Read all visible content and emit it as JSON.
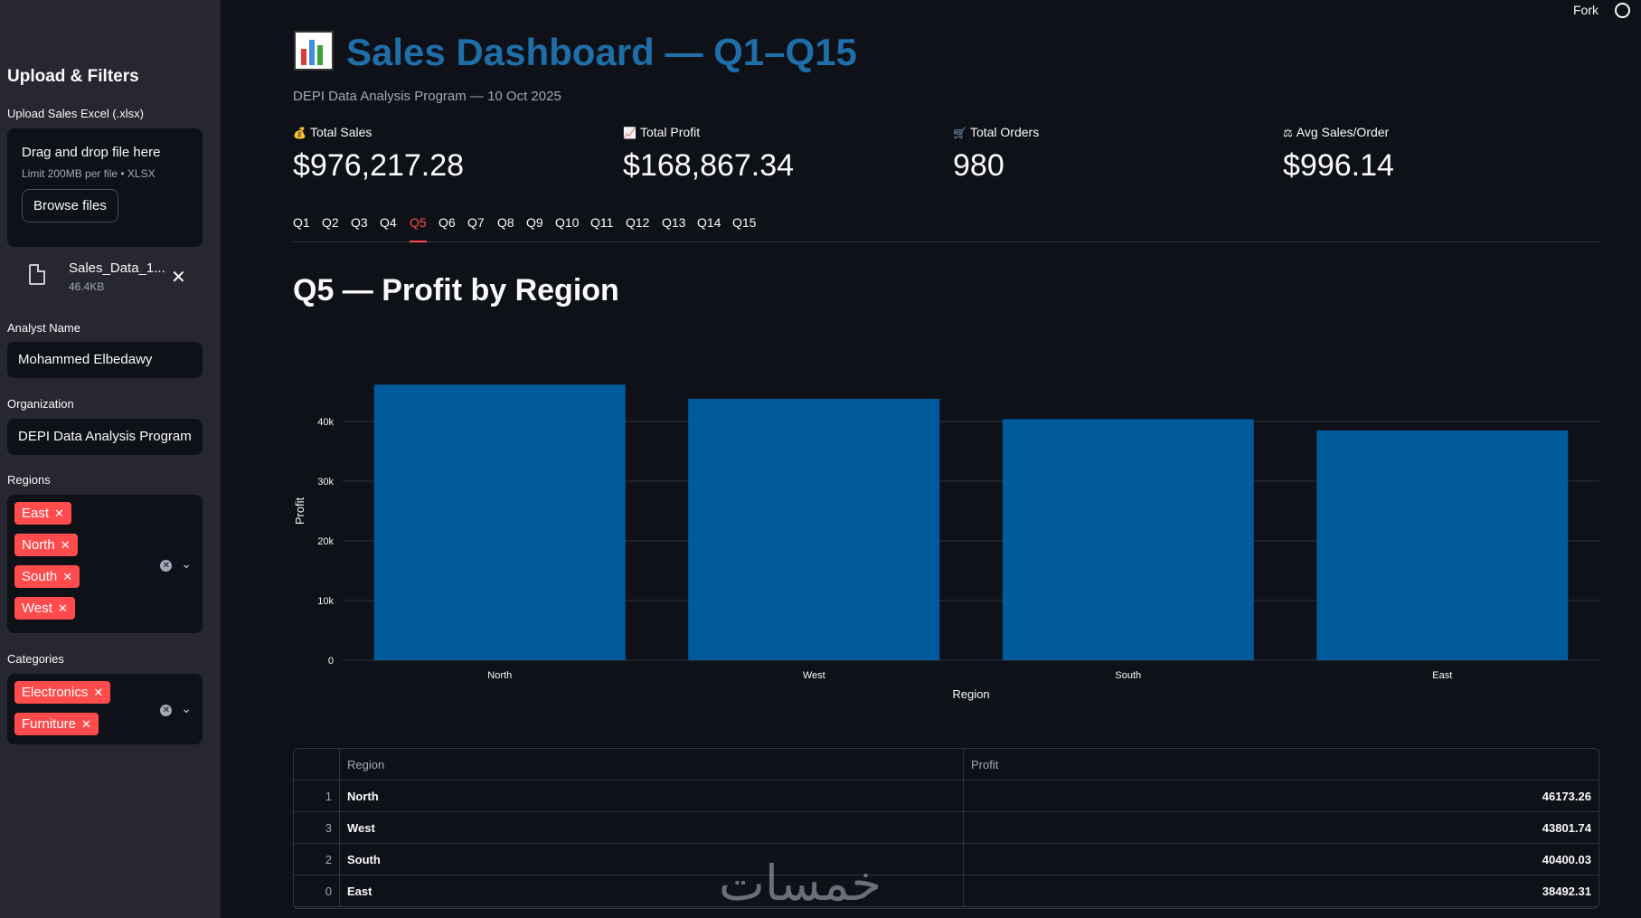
{
  "header": {
    "fork_label": "Fork",
    "github_icon": "github-icon"
  },
  "sidebar": {
    "title": "Upload & Filters",
    "upload_label": "Upload Sales Excel (.xlsx)",
    "dropzone_text": "Drag and drop file here",
    "dropzone_limit": "Limit 200MB per file • XLSX",
    "browse_button": "Browse files",
    "file": {
      "name": "Sales_Data_1...",
      "size": "46.4KB"
    },
    "analyst_label": "Analyst Name",
    "analyst_value": "Mohammed Elbedawy",
    "org_label": "Organization",
    "org_value": "DEPI Data Analysis Program",
    "regions_label": "Regions",
    "regions": [
      "East",
      "North",
      "South",
      "West"
    ],
    "categories_label": "Categories",
    "categories": [
      "Electronics",
      "Furniture"
    ]
  },
  "main": {
    "title": "Sales Dashboard — Q1–Q15",
    "subtitle": "DEPI Data Analysis Program — 10 Oct 2025",
    "metrics": [
      {
        "icon": "money-bag-icon",
        "label": "Total Sales",
        "value": "$976,217.28"
      },
      {
        "icon": "chart-increasing-icon",
        "label": "Total Profit",
        "value": "$168,867.34"
      },
      {
        "icon": "shopping-cart-icon",
        "label": "Total Orders",
        "value": "980"
      },
      {
        "icon": "balance-scale-icon",
        "label": "Avg Sales/Order",
        "value": "$996.14"
      }
    ],
    "tabs": [
      "Q1",
      "Q2",
      "Q3",
      "Q4",
      "Q5",
      "Q6",
      "Q7",
      "Q8",
      "Q9",
      "Q10",
      "Q11",
      "Q12",
      "Q13",
      "Q14",
      "Q15"
    ],
    "active_tab": "Q5",
    "section_title": "Q5 — Profit by Region"
  },
  "chart_data": {
    "type": "bar",
    "categories": [
      "North",
      "West",
      "South",
      "East"
    ],
    "values": [
      46173.26,
      43801.74,
      40400.03,
      38492.31
    ],
    "xlabel": "Region",
    "ylabel": "Profit",
    "yticks": [
      "0",
      "10k",
      "20k",
      "30k",
      "40k"
    ],
    "ylim": [
      0,
      50000
    ],
    "grid": true,
    "color": "#005a9c"
  },
  "table": {
    "headers": [
      "",
      "Region",
      "Profit"
    ],
    "rows": [
      {
        "index": "1",
        "region": "North",
        "profit": "46173.26"
      },
      {
        "index": "3",
        "region": "West",
        "profit": "43801.74"
      },
      {
        "index": "2",
        "region": "South",
        "profit": "40400.03"
      },
      {
        "index": "0",
        "region": "East",
        "profit": "38492.31"
      }
    ]
  },
  "watermark": "خمسات"
}
